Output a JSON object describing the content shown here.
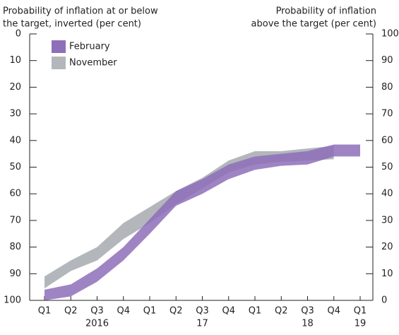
{
  "chart_data": {
    "type": "band",
    "y_label": [
      "Probability of inflation at or below",
      "the target, inverted (per cent)"
    ],
    "y2_label": [
      "Probability of inflation",
      "above the target (per cent)"
    ],
    "categories": [
      "Q1",
      "Q2",
      "Q3",
      "Q4",
      "Q1",
      "Q2",
      "Q3",
      "Q4",
      "Q1",
      "Q2",
      "Q3",
      "Q4",
      "Q1"
    ],
    "year_categories": [
      null,
      null,
      "2016",
      null,
      null,
      null,
      "17",
      null,
      null,
      null,
      "18",
      null,
      "19"
    ],
    "ylim": [
      0,
      100
    ],
    "yticks": [
      0,
      10,
      20,
      30,
      40,
      50,
      60,
      70,
      80,
      90,
      100
    ],
    "y_inverted": true,
    "y2lim": [
      0,
      100
    ],
    "y2ticks": [
      100,
      90,
      80,
      70,
      60,
      50,
      40,
      30,
      20,
      10,
      0
    ],
    "legend": "top-left",
    "series": [
      {
        "name": "November",
        "color": "#b3b7bb",
        "lower": [
          91,
          85,
          80,
          71,
          65,
          59,
          54,
          47.5,
          44,
          44,
          43,
          42,
          null
        ],
        "upper": [
          95.5,
          89,
          85,
          77,
          71,
          64,
          58,
          52,
          49,
          48,
          47.5,
          47,
          null
        ]
      },
      {
        "name": "February",
        "color": "#8e6fba",
        "lower": [
          96,
          94,
          88,
          80,
          69.5,
          59,
          54.5,
          49,
          46,
          45,
          44,
          41.5,
          41.5
        ],
        "upper": [
          100,
          98.5,
          93,
          85,
          75,
          64.5,
          60,
          54.5,
          51,
          49.5,
          49,
          46,
          46
        ]
      }
    ]
  }
}
